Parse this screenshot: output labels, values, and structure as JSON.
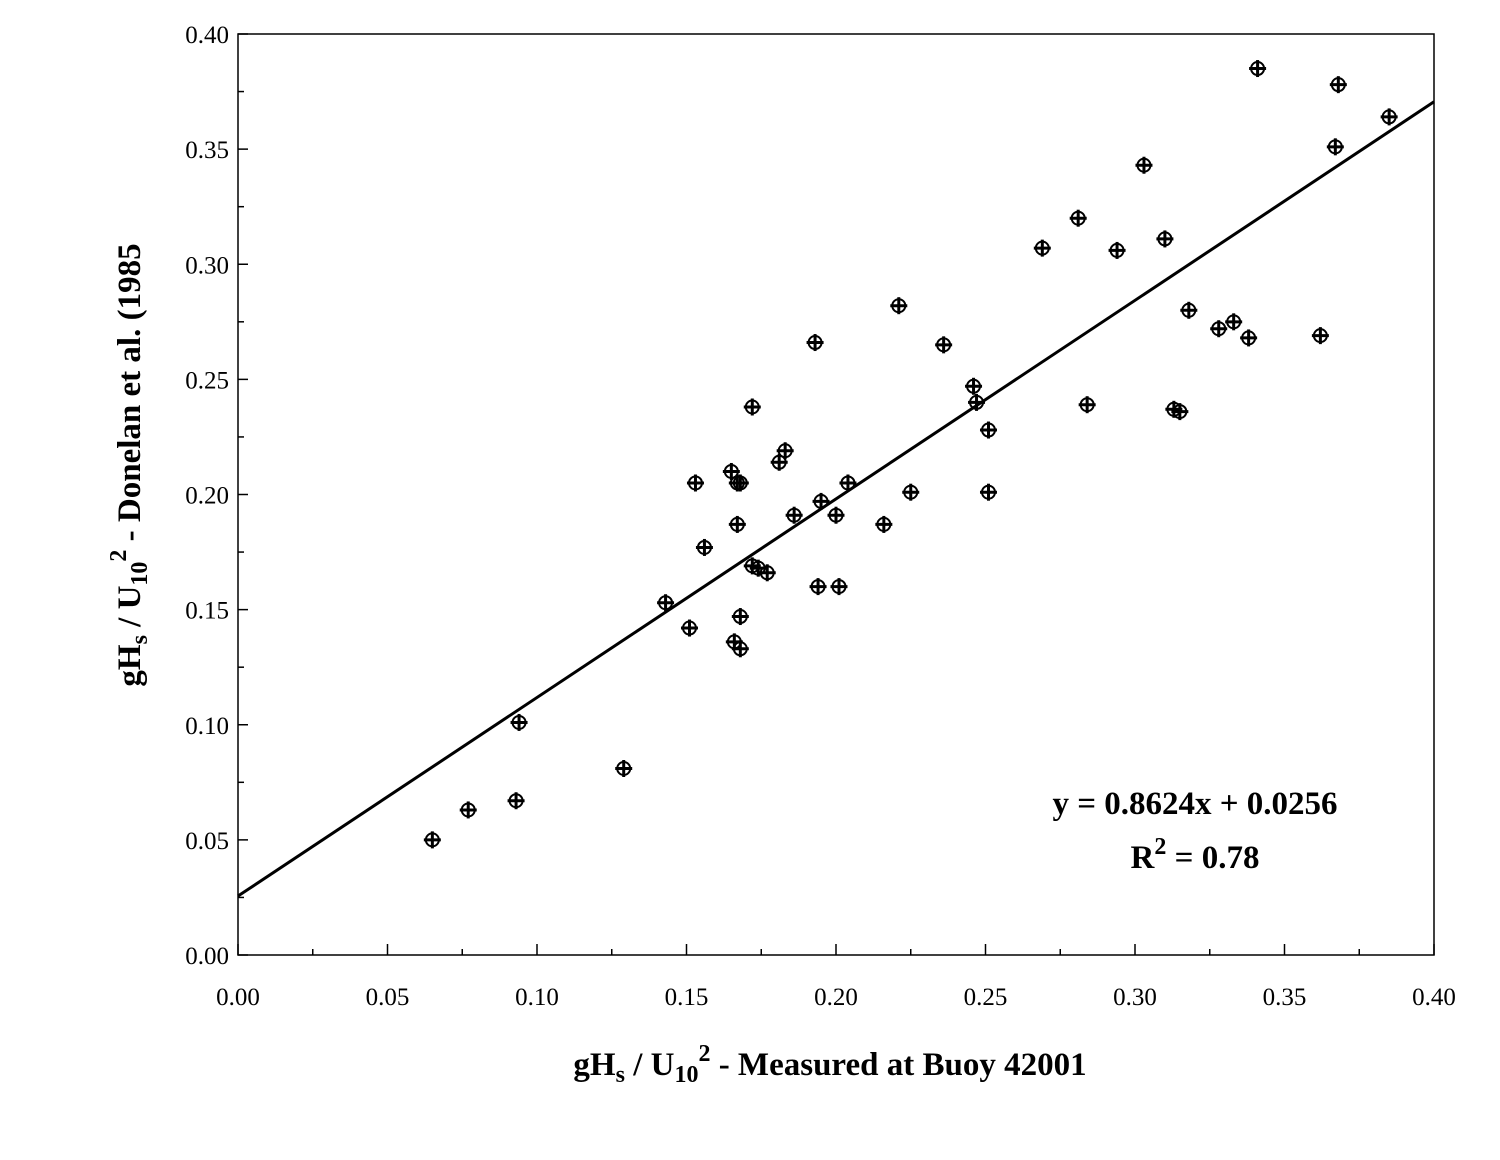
{
  "chart_data": {
    "type": "scatter",
    "xlim": [
      0,
      0.4
    ],
    "ylim": [
      0,
      0.4
    ],
    "x_ticks": [
      "0.00",
      "0.05",
      "0.10",
      "0.15",
      "0.20",
      "0.25",
      "0.30",
      "0.35",
      "0.40"
    ],
    "y_ticks": [
      "0.00",
      "0.05",
      "0.10",
      "0.15",
      "0.20",
      "0.25",
      "0.30",
      "0.35",
      "0.40"
    ],
    "xlabel": {
      "base": "gH",
      "base_sub": "s",
      "slash": " / U",
      "u_sub": "10",
      "u_sup": "2",
      "rest": " - Measured at Buoy 42001"
    },
    "ylabel": {
      "base": "gH",
      "base_sub": "s",
      "slash": " / U",
      "u_sub": "10",
      "u_sup": "2",
      "rest": " - Donelan et al. (1985"
    },
    "grid": false,
    "marker": "cross-circle",
    "series": [
      {
        "x": [
          0.065,
          0.077,
          0.093,
          0.094,
          0.129,
          0.143,
          0.151,
          0.153,
          0.156,
          0.165,
          0.166,
          0.167,
          0.167,
          0.168,
          0.168,
          0.168,
          0.172,
          0.172,
          0.174,
          0.177,
          0.181,
          0.183,
          0.186,
          0.193,
          0.194,
          0.195,
          0.2,
          0.201,
          0.204,
          0.216,
          0.221,
          0.225,
          0.236,
          0.246,
          0.247,
          0.251,
          0.251,
          0.269,
          0.281,
          0.284,
          0.294,
          0.303,
          0.31,
          0.313,
          0.315,
          0.318,
          0.328,
          0.333,
          0.338,
          0.341,
          0.362,
          0.367,
          0.368,
          0.385
        ],
        "y": [
          0.05,
          0.063,
          0.067,
          0.101,
          0.081,
          0.153,
          0.142,
          0.205,
          0.177,
          0.21,
          0.136,
          0.187,
          0.205,
          0.147,
          0.133,
          0.205,
          0.238,
          0.169,
          0.168,
          0.166,
          0.214,
          0.219,
          0.191,
          0.266,
          0.16,
          0.197,
          0.191,
          0.16,
          0.205,
          0.187,
          0.282,
          0.201,
          0.265,
          0.247,
          0.24,
          0.201,
          0.228,
          0.307,
          0.32,
          0.239,
          0.306,
          0.343,
          0.311,
          0.237,
          0.236,
          0.28,
          0.272,
          0.275,
          0.268,
          0.385,
          0.269,
          0.351,
          0.378,
          0.364
        ]
      }
    ],
    "trendline": {
      "slope": 0.8624,
      "intercept": 0.0256,
      "equation": "y = 0.8624x + 0.0256",
      "r2_label": "R",
      "r2_sup": "2",
      "r2_value": " = 0.78"
    }
  }
}
